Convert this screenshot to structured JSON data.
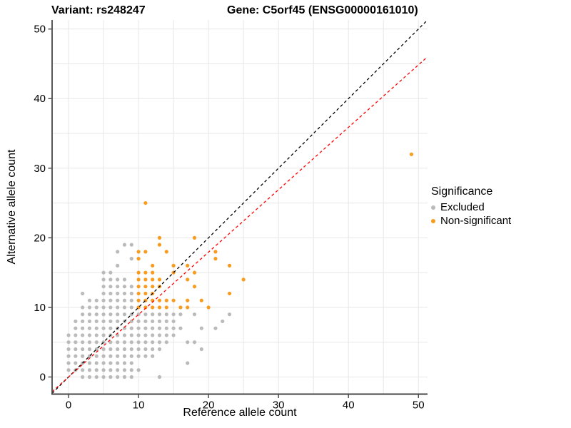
{
  "header": {
    "variant_title": "Variant: rs248247",
    "gene_title": "Gene: C5orf45 (ENSG00000161010)"
  },
  "chart_data": {
    "type": "scatter",
    "xlabel": "Reference allele count",
    "ylabel": "Alternative allele count",
    "xlim": [
      -2.35,
      51.3
    ],
    "ylim": [
      -2.46,
      51.3
    ],
    "xticks": [
      0,
      10,
      20,
      30,
      40,
      50
    ],
    "yticks": [
      0,
      10,
      20,
      30,
      40,
      50
    ],
    "grid_ticks": [
      0,
      5,
      10,
      15,
      20,
      25,
      30,
      35,
      40,
      45,
      50
    ],
    "grid": "on",
    "colors": {
      "excluded": "#bababa",
      "non_significant": "#f89c20",
      "identity_line": "#000000",
      "ratio_line": "#ff0000",
      "gridline": "#e7e7e7",
      "axis": "#464646"
    },
    "legend": {
      "title": "Significance",
      "position": "right",
      "entries": [
        {
          "label": "Excluded",
          "color": "#bababa"
        },
        {
          "label": "Non-significant",
          "color": "#f89c20"
        }
      ]
    },
    "lines": [
      {
        "name": "identity-line",
        "slope": 1.0,
        "intercept": 0,
        "style": "dashed",
        "color": "#000000"
      },
      {
        "name": "ratio-line",
        "slope": 0.897,
        "intercept": 0,
        "style": "dashed",
        "color": "#ff0000"
      }
    ],
    "series": [
      {
        "name": "Excluded",
        "color": "#bababa",
        "points": [
          [
            2,
            0
          ],
          [
            3,
            0
          ],
          [
            4,
            0
          ],
          [
            5,
            0
          ],
          [
            6,
            0
          ],
          [
            7,
            0
          ],
          [
            8,
            0
          ],
          [
            9,
            0
          ],
          [
            13,
            0
          ],
          [
            0,
            1
          ],
          [
            1,
            1
          ],
          [
            2,
            1
          ],
          [
            3,
            1
          ],
          [
            4,
            1
          ],
          [
            5,
            1
          ],
          [
            6,
            1
          ],
          [
            7,
            1
          ],
          [
            8,
            1
          ],
          [
            9,
            1
          ],
          [
            10,
            1
          ],
          [
            0,
            2
          ],
          [
            1,
            2
          ],
          [
            2,
            2
          ],
          [
            3,
            2
          ],
          [
            4,
            2
          ],
          [
            5,
            2
          ],
          [
            6,
            2
          ],
          [
            7,
            2
          ],
          [
            8,
            2
          ],
          [
            9,
            2
          ],
          [
            17,
            2
          ],
          [
            0,
            3
          ],
          [
            1,
            3
          ],
          [
            2,
            3
          ],
          [
            3,
            3
          ],
          [
            4,
            3
          ],
          [
            5,
            3
          ],
          [
            6,
            3
          ],
          [
            7,
            3
          ],
          [
            8,
            3
          ],
          [
            9,
            3
          ],
          [
            10,
            3
          ],
          [
            11,
            3
          ],
          [
            12,
            3
          ],
          [
            0,
            4
          ],
          [
            1,
            4
          ],
          [
            2,
            4
          ],
          [
            3,
            4
          ],
          [
            4,
            4
          ],
          [
            5,
            4
          ],
          [
            6,
            4
          ],
          [
            7,
            4
          ],
          [
            8,
            4
          ],
          [
            9,
            4
          ],
          [
            10,
            4
          ],
          [
            11,
            4
          ],
          [
            12,
            4
          ],
          [
            13,
            4
          ],
          [
            19,
            4
          ],
          [
            0,
            5
          ],
          [
            1,
            5
          ],
          [
            2,
            5
          ],
          [
            3,
            5
          ],
          [
            4,
            5
          ],
          [
            5,
            5
          ],
          [
            6,
            5
          ],
          [
            7,
            5
          ],
          [
            8,
            5
          ],
          [
            9,
            5
          ],
          [
            10,
            5
          ],
          [
            11,
            5
          ],
          [
            12,
            5
          ],
          [
            13,
            5
          ],
          [
            14,
            5
          ],
          [
            17,
            5
          ],
          [
            18,
            5
          ],
          [
            0,
            6
          ],
          [
            1,
            6
          ],
          [
            2,
            6
          ],
          [
            3,
            6
          ],
          [
            4,
            6
          ],
          [
            5,
            6
          ],
          [
            6,
            6
          ],
          [
            7,
            6
          ],
          [
            8,
            6
          ],
          [
            9,
            6
          ],
          [
            10,
            6
          ],
          [
            11,
            6
          ],
          [
            12,
            6
          ],
          [
            13,
            6
          ],
          [
            14,
            6
          ],
          [
            15,
            6
          ],
          [
            1,
            7
          ],
          [
            2,
            7
          ],
          [
            3,
            7
          ],
          [
            4,
            7
          ],
          [
            5,
            7
          ],
          [
            6,
            7
          ],
          [
            7,
            7
          ],
          [
            8,
            7
          ],
          [
            9,
            7
          ],
          [
            10,
            7
          ],
          [
            11,
            7
          ],
          [
            12,
            7
          ],
          [
            13,
            7
          ],
          [
            14,
            7
          ],
          [
            15,
            7
          ],
          [
            16,
            7
          ],
          [
            19,
            7
          ],
          [
            21,
            7
          ],
          [
            1,
            8
          ],
          [
            2,
            8
          ],
          [
            3,
            8
          ],
          [
            4,
            8
          ],
          [
            5,
            8
          ],
          [
            6,
            8
          ],
          [
            7,
            8
          ],
          [
            8,
            8
          ],
          [
            9,
            8
          ],
          [
            10,
            8
          ],
          [
            11,
            8
          ],
          [
            12,
            8
          ],
          [
            13,
            8
          ],
          [
            14,
            8
          ],
          [
            15,
            8
          ],
          [
            22,
            8
          ],
          [
            2,
            9
          ],
          [
            3,
            9
          ],
          [
            4,
            9
          ],
          [
            5,
            9
          ],
          [
            6,
            9
          ],
          [
            7,
            9
          ],
          [
            8,
            9
          ],
          [
            9,
            9
          ],
          [
            10,
            9
          ],
          [
            11,
            9
          ],
          [
            12,
            9
          ],
          [
            13,
            9
          ],
          [
            14,
            9
          ],
          [
            15,
            9
          ],
          [
            16,
            9
          ],
          [
            18,
            9
          ],
          [
            23,
            9
          ],
          [
            2,
            10
          ],
          [
            3,
            10
          ],
          [
            4,
            10
          ],
          [
            5,
            10
          ],
          [
            6,
            10
          ],
          [
            7,
            10
          ],
          [
            8,
            10
          ],
          [
            9,
            10
          ],
          [
            3,
            11
          ],
          [
            4,
            11
          ],
          [
            5,
            11
          ],
          [
            6,
            11
          ],
          [
            7,
            11
          ],
          [
            8,
            11
          ],
          [
            9,
            11
          ],
          [
            2,
            12
          ],
          [
            5,
            12
          ],
          [
            6,
            12
          ],
          [
            7,
            12
          ],
          [
            8,
            12
          ],
          [
            9,
            12
          ],
          [
            5,
            13
          ],
          [
            6,
            13
          ],
          [
            7,
            13
          ],
          [
            8,
            13
          ],
          [
            9,
            13
          ],
          [
            5,
            14
          ],
          [
            6,
            14
          ],
          [
            7,
            14
          ],
          [
            8,
            14
          ],
          [
            5,
            15
          ],
          [
            6,
            15
          ],
          [
            7,
            16
          ],
          [
            9,
            17
          ],
          [
            7,
            18
          ],
          [
            8,
            19
          ],
          [
            9,
            19
          ]
        ]
      },
      {
        "name": "Non-significant",
        "color": "#f89c20",
        "points": [
          [
            10,
            10
          ],
          [
            11,
            10
          ],
          [
            12,
            10
          ],
          [
            13,
            10
          ],
          [
            14,
            10
          ],
          [
            16,
            10
          ],
          [
            17,
            10
          ],
          [
            20,
            10
          ],
          [
            10,
            11
          ],
          [
            11,
            11
          ],
          [
            12,
            11
          ],
          [
            13,
            11
          ],
          [
            14,
            11
          ],
          [
            15,
            11
          ],
          [
            17,
            11
          ],
          [
            19,
            11
          ],
          [
            10,
            12
          ],
          [
            11,
            12
          ],
          [
            12,
            12
          ],
          [
            23,
            12
          ],
          [
            10,
            13
          ],
          [
            11,
            13
          ],
          [
            12,
            13
          ],
          [
            13,
            13
          ],
          [
            18,
            13
          ],
          [
            10,
            14
          ],
          [
            11,
            14
          ],
          [
            12,
            14
          ],
          [
            13,
            14
          ],
          [
            17,
            14
          ],
          [
            25,
            14
          ],
          [
            10,
            15
          ],
          [
            11,
            15
          ],
          [
            12,
            15
          ],
          [
            15,
            15
          ],
          [
            18,
            15
          ],
          [
            12,
            16
          ],
          [
            15,
            16
          ],
          [
            17,
            16
          ],
          [
            23,
            16
          ],
          [
            10,
            17
          ],
          [
            21,
            17
          ],
          [
            10,
            18
          ],
          [
            11,
            18
          ],
          [
            14,
            18
          ],
          [
            21,
            18
          ],
          [
            13,
            19
          ],
          [
            13,
            20
          ],
          [
            18,
            20
          ],
          [
            11,
            25
          ],
          [
            49,
            32
          ]
        ]
      }
    ]
  }
}
